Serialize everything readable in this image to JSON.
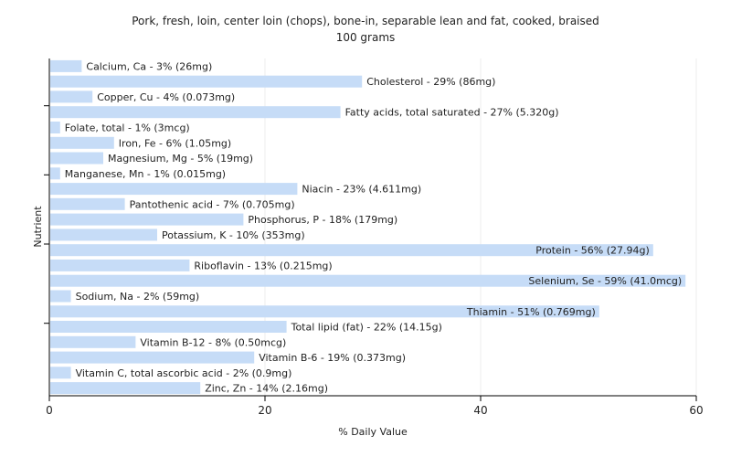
{
  "chart_data": {
    "type": "bar",
    "orientation": "horizontal",
    "title": "Pork, fresh, loin, center loin (chops), bone-in, separable lean and fat, cooked, braised",
    "subtitle": "100 grams",
    "xlabel": "% Daily Value",
    "ylabel": "Nutrient",
    "xlim": [
      0,
      60
    ],
    "xticks": [
      "0",
      "20",
      "40",
      "60"
    ],
    "grid": true,
    "bar_color": "#c6dcf7",
    "categories": [
      "Calcium, Ca",
      "Cholesterol",
      "Copper, Cu",
      "Fatty acids, total saturated",
      "Folate, total",
      "Iron, Fe",
      "Magnesium, Mg",
      "Manganese, Mn",
      "Niacin",
      "Pantothenic acid",
      "Phosphorus, P",
      "Potassium, K",
      "Protein",
      "Riboflavin",
      "Selenium, Se",
      "Sodium, Na",
      "Thiamin",
      "Total lipid (fat)",
      "Vitamin B-12",
      "Vitamin B-6",
      "Vitamin C, total ascorbic acid",
      "Zinc, Zn"
    ],
    "values": [
      3,
      29,
      4,
      27,
      1,
      6,
      5,
      1,
      23,
      7,
      18,
      10,
      56,
      13,
      59,
      2,
      51,
      22,
      8,
      19,
      2,
      14
    ],
    "labels": [
      "Calcium, Ca - 3% (26mg)",
      "Cholesterol - 29% (86mg)",
      "Copper, Cu - 4% (0.073mg)",
      "Fatty acids, total saturated - 27% (5.320g)",
      "Folate, total - 1% (3mcg)",
      "Iron, Fe - 6% (1.05mg)",
      "Magnesium, Mg - 5% (19mg)",
      "Manganese, Mn - 1% (0.015mg)",
      "Niacin - 23% (4.611mg)",
      "Pantothenic acid - 7% (0.705mg)",
      "Phosphorus, P - 18% (179mg)",
      "Potassium, K - 10% (353mg)",
      "Protein - 56% (27.94g)",
      "Riboflavin - 13% (0.215mg)",
      "Selenium, Se - 59% (41.0mcg)",
      "Sodium, Na - 2% (59mg)",
      "Thiamin - 51% (0.769mg)",
      "Total lipid (fat) - 22% (14.15g)",
      "Vitamin B-12 - 8% (0.50mcg)",
      "Vitamin B-6 - 19% (0.373mg)",
      "Vitamin C, total ascorbic acid - 2% (0.9mg)",
      "Zinc, Zn - 14% (2.16mg)"
    ]
  }
}
